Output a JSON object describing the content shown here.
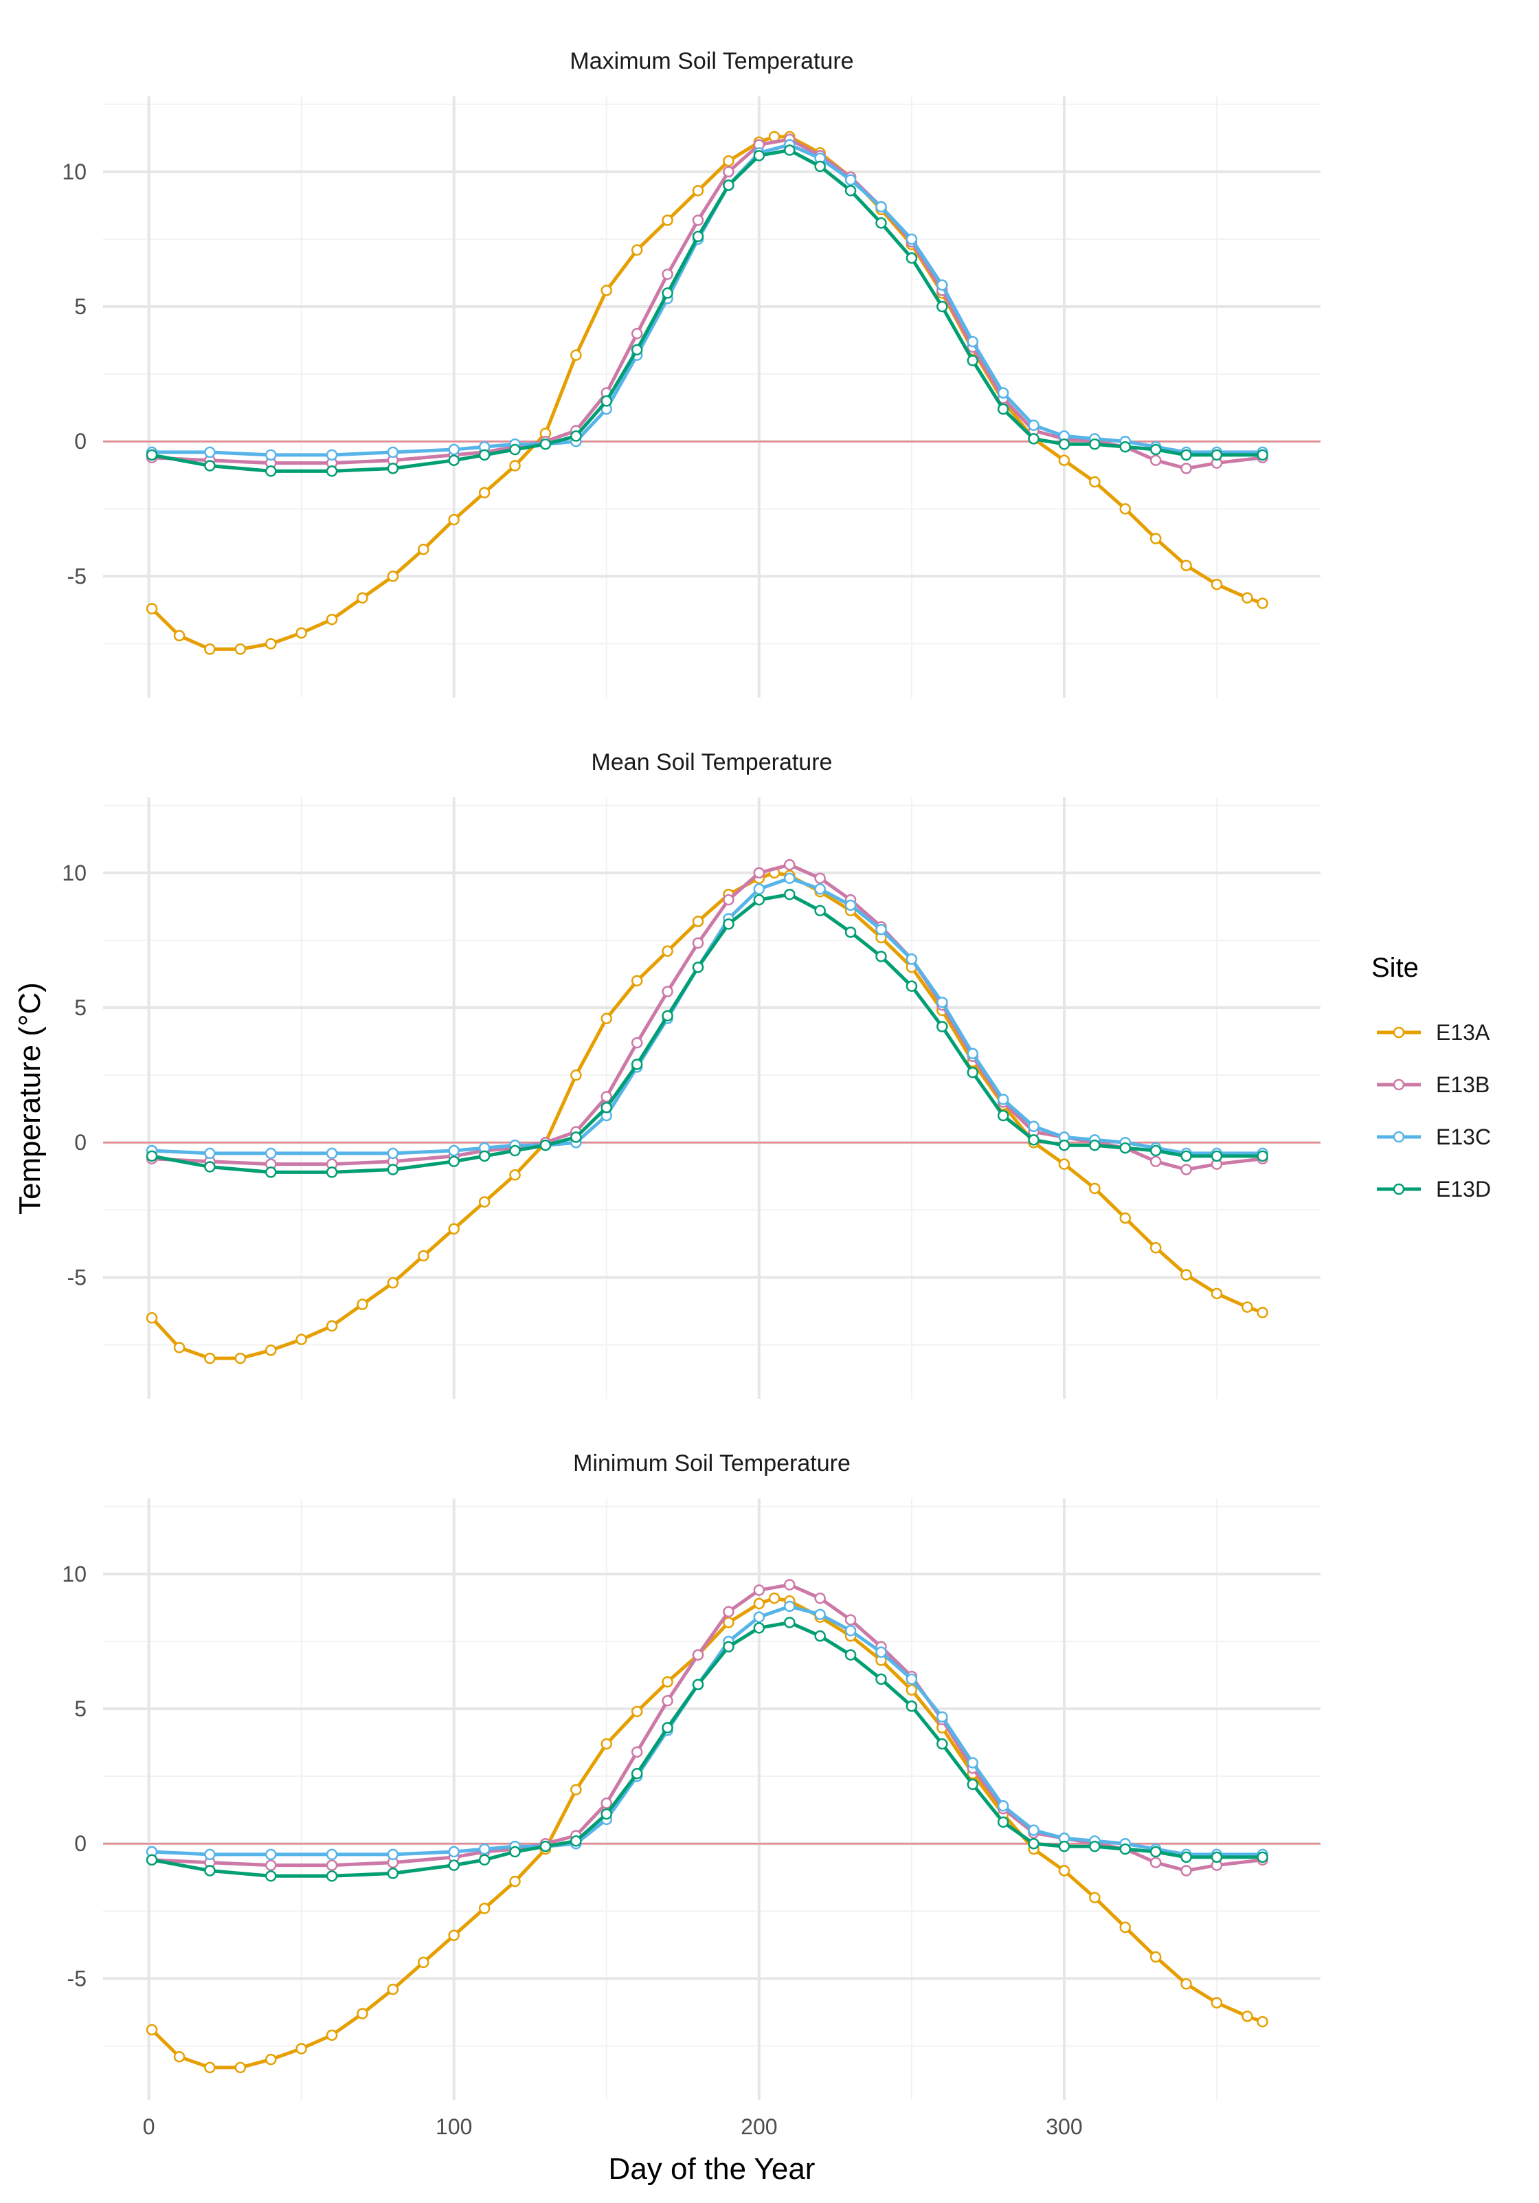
{
  "figure": {
    "ylabel": "Temperature (°C)",
    "xlabel": "Day of the Year",
    "legend_title": "Site",
    "legend_position": "right"
  },
  "colors": {
    "E13A": "#E69F00",
    "E13B": "#CC79A7",
    "E13C": "#56B4E9",
    "E13D": "#009E73",
    "zero_line": "#E6888F",
    "grid_major": "#E6E6E6",
    "grid_minor": "#F2F2F2",
    "axis_text": "#4D4D4D"
  },
  "legend": [
    {
      "name": "E13A",
      "color_key": "E13A"
    },
    {
      "name": "E13B",
      "color_key": "E13B"
    },
    {
      "name": "E13C",
      "color_key": "E13C"
    },
    {
      "name": "E13D",
      "color_key": "E13D"
    }
  ],
  "chart_data": [
    {
      "type": "line",
      "title": "Maximum Soil Temperature",
      "xlabel": "Day of the Year",
      "ylabel": "Temperature (°C)",
      "xlim": [
        -15,
        384
      ],
      "ylim": [
        -9.5,
        12.8
      ],
      "xticks": [
        0,
        100,
        200,
        300
      ],
      "yticks": [
        -5,
        0,
        5,
        10
      ],
      "grid": true,
      "hline": 0,
      "series": [
        {
          "name": "E13A",
          "x": [
            1,
            10,
            20,
            30,
            40,
            50,
            60,
            70,
            80,
            90,
            100,
            110,
            120,
            130,
            140,
            150,
            160,
            170,
            180,
            190,
            200,
            205,
            210,
            220,
            230,
            240,
            250,
            260,
            270,
            280,
            290,
            300,
            310,
            320,
            330,
            340,
            350,
            360,
            365
          ],
          "y": [
            -6.2,
            -7.2,
            -7.7,
            -7.7,
            -7.5,
            -7.1,
            -6.6,
            -5.8,
            -5.0,
            -4.0,
            -2.9,
            -1.9,
            -0.9,
            0.3,
            3.2,
            5.6,
            7.1,
            8.2,
            9.3,
            10.4,
            11.1,
            11.3,
            11.3,
            10.7,
            9.8,
            8.6,
            7.3,
            5.5,
            3.4,
            1.5,
            0.1,
            -0.7,
            -1.5,
            -2.5,
            -3.6,
            -4.6,
            -5.3,
            -5.8,
            -6.0
          ]
        },
        {
          "name": "E13B",
          "x": [
            1,
            20,
            40,
            60,
            80,
            100,
            110,
            120,
            130,
            140,
            150,
            160,
            170,
            180,
            190,
            200,
            210,
            220,
            230,
            240,
            250,
            260,
            270,
            280,
            290,
            300,
            310,
            320,
            330,
            340,
            350,
            365
          ],
          "y": [
            -0.6,
            -0.7,
            -0.8,
            -0.8,
            -0.7,
            -0.5,
            -0.4,
            -0.2,
            0.0,
            0.4,
            1.8,
            4.0,
            6.2,
            8.2,
            10.0,
            11.0,
            11.2,
            10.6,
            9.8,
            8.7,
            7.4,
            5.6,
            3.5,
            1.6,
            0.4,
            0.1,
            0.0,
            -0.2,
            -0.7,
            -1.0,
            -0.8,
            -0.6
          ]
        },
        {
          "name": "E13C",
          "x": [
            1,
            20,
            40,
            60,
            80,
            100,
            110,
            120,
            130,
            140,
            150,
            160,
            170,
            180,
            190,
            200,
            210,
            220,
            230,
            240,
            250,
            260,
            270,
            280,
            290,
            300,
            310,
            320,
            330,
            340,
            350,
            365
          ],
          "y": [
            -0.4,
            -0.4,
            -0.5,
            -0.5,
            -0.4,
            -0.3,
            -0.2,
            -0.1,
            -0.1,
            0.0,
            1.2,
            3.2,
            5.3,
            7.5,
            9.5,
            10.7,
            11.0,
            10.5,
            9.7,
            8.7,
            7.5,
            5.8,
            3.7,
            1.8,
            0.6,
            0.2,
            0.1,
            0.0,
            -0.2,
            -0.4,
            -0.4,
            -0.4
          ]
        },
        {
          "name": "E13D",
          "x": [
            1,
            20,
            40,
            60,
            80,
            100,
            110,
            120,
            130,
            140,
            150,
            160,
            170,
            180,
            190,
            200,
            210,
            220,
            230,
            240,
            250,
            260,
            270,
            280,
            290,
            300,
            310,
            320,
            330,
            340,
            350,
            365
          ],
          "y": [
            -0.5,
            -0.9,
            -1.1,
            -1.1,
            -1.0,
            -0.7,
            -0.5,
            -0.3,
            -0.1,
            0.2,
            1.5,
            3.4,
            5.5,
            7.6,
            9.5,
            10.6,
            10.8,
            10.2,
            9.3,
            8.1,
            6.8,
            5.0,
            3.0,
            1.2,
            0.1,
            -0.1,
            -0.1,
            -0.2,
            -0.3,
            -0.5,
            -0.5,
            -0.5
          ]
        }
      ]
    },
    {
      "type": "line",
      "title": "Mean Soil Temperature",
      "xlabel": "Day of the Year",
      "ylabel": "Temperature (°C)",
      "xlim": [
        -15,
        384
      ],
      "ylim": [
        -9.5,
        12.8
      ],
      "xticks": [
        0,
        100,
        200,
        300
      ],
      "yticks": [
        -5,
        0,
        5,
        10
      ],
      "grid": true,
      "hline": 0,
      "series": [
        {
          "name": "E13A",
          "x": [
            1,
            10,
            20,
            30,
            40,
            50,
            60,
            70,
            80,
            90,
            100,
            110,
            120,
            130,
            140,
            150,
            160,
            170,
            180,
            190,
            200,
            205,
            210,
            220,
            230,
            240,
            250,
            260,
            270,
            280,
            290,
            300,
            310,
            320,
            330,
            340,
            350,
            360,
            365
          ],
          "y": [
            -6.5,
            -7.6,
            -8.0,
            -8.0,
            -7.7,
            -7.3,
            -6.8,
            -6.0,
            -5.2,
            -4.2,
            -3.2,
            -2.2,
            -1.2,
            0.0,
            2.5,
            4.6,
            6.0,
            7.1,
            8.2,
            9.2,
            9.8,
            10.0,
            9.9,
            9.3,
            8.6,
            7.6,
            6.5,
            4.9,
            3.0,
            1.4,
            0.0,
            -0.8,
            -1.7,
            -2.8,
            -3.9,
            -4.9,
            -5.6,
            -6.1,
            -6.3
          ]
        },
        {
          "name": "E13B",
          "x": [
            1,
            20,
            40,
            60,
            80,
            100,
            110,
            120,
            130,
            140,
            150,
            160,
            170,
            180,
            190,
            200,
            210,
            220,
            230,
            240,
            250,
            260,
            270,
            280,
            290,
            300,
            310,
            320,
            330,
            340,
            350,
            365
          ],
          "y": [
            -0.6,
            -0.7,
            -0.8,
            -0.8,
            -0.7,
            -0.5,
            -0.3,
            -0.2,
            0.0,
            0.4,
            1.7,
            3.7,
            5.6,
            7.4,
            9.0,
            10.0,
            10.3,
            9.8,
            9.0,
            8.0,
            6.8,
            5.1,
            3.2,
            1.5,
            0.4,
            0.2,
            0.0,
            -0.2,
            -0.7,
            -1.0,
            -0.8,
            -0.6
          ]
        },
        {
          "name": "E13C",
          "x": [
            1,
            20,
            40,
            60,
            80,
            100,
            110,
            120,
            130,
            140,
            150,
            160,
            170,
            180,
            190,
            200,
            210,
            220,
            230,
            240,
            250,
            260,
            270,
            280,
            290,
            300,
            310,
            320,
            330,
            340,
            350,
            365
          ],
          "y": [
            -0.3,
            -0.4,
            -0.4,
            -0.4,
            -0.4,
            -0.3,
            -0.2,
            -0.1,
            -0.1,
            0.0,
            1.0,
            2.8,
            4.6,
            6.5,
            8.3,
            9.4,
            9.8,
            9.4,
            8.8,
            7.9,
            6.8,
            5.2,
            3.3,
            1.6,
            0.6,
            0.2,
            0.1,
            0.0,
            -0.2,
            -0.4,
            -0.4,
            -0.4
          ]
        },
        {
          "name": "E13D",
          "x": [
            1,
            20,
            40,
            60,
            80,
            100,
            110,
            120,
            130,
            140,
            150,
            160,
            170,
            180,
            190,
            200,
            210,
            220,
            230,
            240,
            250,
            260,
            270,
            280,
            290,
            300,
            310,
            320,
            330,
            340,
            350,
            365
          ],
          "y": [
            -0.5,
            -0.9,
            -1.1,
            -1.1,
            -1.0,
            -0.7,
            -0.5,
            -0.3,
            -0.1,
            0.2,
            1.3,
            2.9,
            4.7,
            6.5,
            8.1,
            9.0,
            9.2,
            8.6,
            7.8,
            6.9,
            5.8,
            4.3,
            2.6,
            1.0,
            0.1,
            -0.1,
            -0.1,
            -0.2,
            -0.3,
            -0.5,
            -0.5,
            -0.5
          ]
        }
      ]
    },
    {
      "type": "line",
      "title": "Minimum Soil Temperature",
      "xlabel": "Day of the Year",
      "ylabel": "Temperature (°C)",
      "xlim": [
        -15,
        384
      ],
      "ylim": [
        -9.5,
        12.8
      ],
      "xticks": [
        0,
        100,
        200,
        300
      ],
      "yticks": [
        -5,
        0,
        5,
        10
      ],
      "grid": true,
      "hline": 0,
      "series": [
        {
          "name": "E13A",
          "x": [
            1,
            10,
            20,
            30,
            40,
            50,
            60,
            70,
            80,
            90,
            100,
            110,
            120,
            130,
            140,
            150,
            160,
            170,
            180,
            190,
            200,
            205,
            210,
            220,
            230,
            240,
            250,
            260,
            270,
            280,
            290,
            300,
            310,
            320,
            330,
            340,
            350,
            360,
            365
          ],
          "y": [
            -6.9,
            -7.9,
            -8.3,
            -8.3,
            -8.0,
            -7.6,
            -7.1,
            -6.3,
            -5.4,
            -4.4,
            -3.4,
            -2.4,
            -1.4,
            -0.2,
            2.0,
            3.7,
            4.9,
            6.0,
            7.0,
            8.2,
            8.9,
            9.1,
            9.0,
            8.4,
            7.7,
            6.8,
            5.7,
            4.3,
            2.6,
            1.1,
            -0.2,
            -1.0,
            -2.0,
            -3.1,
            -4.2,
            -5.2,
            -5.9,
            -6.4,
            -6.6
          ]
        },
        {
          "name": "E13B",
          "x": [
            1,
            20,
            40,
            60,
            80,
            100,
            110,
            120,
            130,
            140,
            150,
            160,
            170,
            180,
            190,
            200,
            210,
            220,
            230,
            240,
            250,
            260,
            270,
            280,
            290,
            300,
            310,
            320,
            330,
            340,
            350,
            365
          ],
          "y": [
            -0.6,
            -0.7,
            -0.8,
            -0.8,
            -0.7,
            -0.5,
            -0.3,
            -0.2,
            0.0,
            0.3,
            1.5,
            3.4,
            5.3,
            7.0,
            8.6,
            9.4,
            9.6,
            9.1,
            8.3,
            7.3,
            6.2,
            4.6,
            2.8,
            1.3,
            0.4,
            0.2,
            0.0,
            -0.2,
            -0.7,
            -1.0,
            -0.8,
            -0.6
          ]
        },
        {
          "name": "E13C",
          "x": [
            1,
            20,
            40,
            60,
            80,
            100,
            110,
            120,
            130,
            140,
            150,
            160,
            170,
            180,
            190,
            200,
            210,
            220,
            230,
            240,
            250,
            260,
            270,
            280,
            290,
            300,
            310,
            320,
            330,
            340,
            350,
            365
          ],
          "y": [
            -0.3,
            -0.4,
            -0.4,
            -0.4,
            -0.4,
            -0.3,
            -0.2,
            -0.1,
            -0.1,
            0.0,
            0.9,
            2.5,
            4.2,
            5.9,
            7.5,
            8.4,
            8.8,
            8.5,
            7.9,
            7.1,
            6.1,
            4.7,
            3.0,
            1.4,
            0.5,
            0.2,
            0.1,
            0.0,
            -0.2,
            -0.4,
            -0.4,
            -0.4
          ]
        },
        {
          "name": "E13D",
          "x": [
            1,
            20,
            40,
            60,
            80,
            100,
            110,
            120,
            130,
            140,
            150,
            160,
            170,
            180,
            190,
            200,
            210,
            220,
            230,
            240,
            250,
            260,
            270,
            280,
            290,
            300,
            310,
            320,
            330,
            340,
            350,
            365
          ],
          "y": [
            -0.6,
            -1.0,
            -1.2,
            -1.2,
            -1.1,
            -0.8,
            -0.6,
            -0.3,
            -0.1,
            0.1,
            1.1,
            2.6,
            4.3,
            5.9,
            7.3,
            8.0,
            8.2,
            7.7,
            7.0,
            6.1,
            5.1,
            3.7,
            2.2,
            0.8,
            0.0,
            -0.1,
            -0.1,
            -0.2,
            -0.3,
            -0.5,
            -0.5,
            -0.5
          ]
        }
      ]
    }
  ]
}
